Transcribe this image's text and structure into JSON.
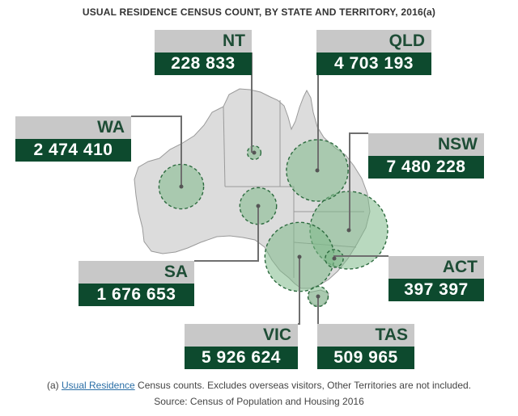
{
  "title": "USUAL RESIDENCE CENSUS COUNT, BY STATE AND TERRITORY, 2016(a)",
  "colors": {
    "label_header_bg": "#c8c8c8",
    "label_header_text": "#1e4d36",
    "label_value_bg": "#0d4a2e",
    "label_value_text": "#ffffff",
    "map_fill": "#dcdcdc",
    "map_border": "#9a9a9a",
    "bubble_fill": "#7fb98a",
    "bubble_stroke": "#2d6b3f",
    "link": "#2a6ea6"
  },
  "states": [
    {
      "code": "NT",
      "value": "228 833"
    },
    {
      "code": "QLD",
      "value": "4 703 193"
    },
    {
      "code": "WA",
      "value": "2 474 410"
    },
    {
      "code": "NSW",
      "value": "7 480 228"
    },
    {
      "code": "SA",
      "value": "1 676 653"
    },
    {
      "code": "ACT",
      "value": "397 397"
    },
    {
      "code": "VIC",
      "value": "5 926 624"
    },
    {
      "code": "TAS",
      "value": "509 965"
    }
  ],
  "footnote": {
    "prefix": "(a)",
    "link_text": "Usual Residence",
    "rest": "Census counts. Excludes overseas visitors, Other Territories are not included."
  },
  "source": "Source: Census of Population and Housing 2016"
}
